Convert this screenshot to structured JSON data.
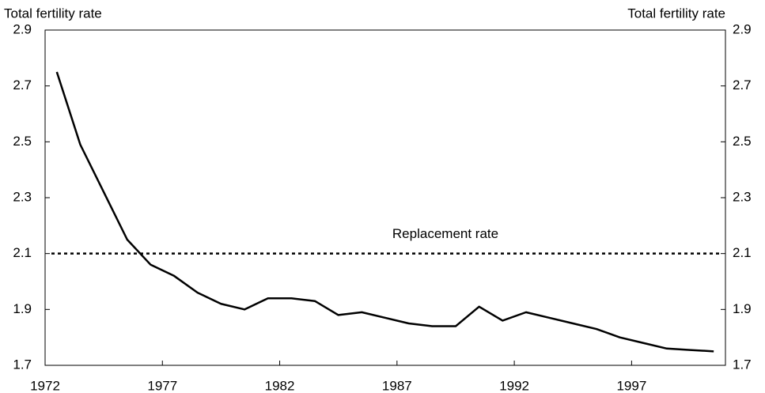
{
  "chart_data": {
    "type": "line",
    "y_label": "Total fertility rate",
    "y2_label": "Total fertility rate",
    "x": [
      1972.5,
      1973.5,
      1974.5,
      1975.5,
      1976.5,
      1977.5,
      1978.5,
      1979.5,
      1980.5,
      1981.5,
      1982.5,
      1983.5,
      1984.5,
      1985.5,
      1986.5,
      1987.5,
      1988.5,
      1989.5,
      1990.5,
      1991.5,
      1992.5,
      1993.5,
      1994.5,
      1995.5,
      1996.5,
      1997.5,
      1998.5,
      1999.5,
      2000.5
    ],
    "series": [
      {
        "color": "#000000",
        "values": [
          2.75,
          2.49,
          2.32,
          2.15,
          2.06,
          2.02,
          1.96,
          1.92,
          1.9,
          1.94,
          1.94,
          1.93,
          1.88,
          1.89,
          1.87,
          1.85,
          1.84,
          1.84,
          1.91,
          1.86,
          1.89,
          1.87,
          1.85,
          1.83,
          1.8,
          1.78,
          1.76,
          1.755,
          1.75
        ]
      }
    ],
    "reference_line": {
      "value": 2.1,
      "label": "Replacement rate",
      "color": "#000000"
    },
    "xlim": [
      1972,
      2001
    ],
    "xticks": [
      1972,
      1977,
      1982,
      1987,
      1992,
      1997
    ],
    "ylim": [
      1.7,
      2.9
    ],
    "yticks": [
      1.7,
      1.9,
      2.1,
      2.3,
      2.5,
      2.7,
      2.9
    ],
    "y2lim": [
      1.7,
      2.9
    ],
    "y2ticks": [
      1.7,
      1.9,
      2.1,
      2.3,
      2.5,
      2.7,
      2.9
    ],
    "grid": false
  }
}
